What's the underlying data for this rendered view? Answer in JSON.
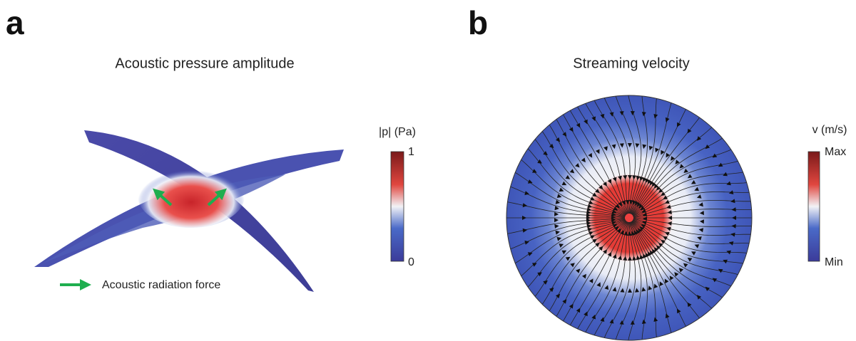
{
  "panel_a": {
    "label": "a",
    "title": "Acoustic pressure amplitude",
    "colorbar": {
      "title": "|p| (Pa)",
      "max": "1",
      "min": "0"
    },
    "legend": "Acoustic radiation force"
  },
  "panel_b": {
    "label": "b",
    "title": "Streaming velocity",
    "colorbar": {
      "title": "v (m/s)",
      "max": "Max",
      "min": "Min"
    }
  }
}
